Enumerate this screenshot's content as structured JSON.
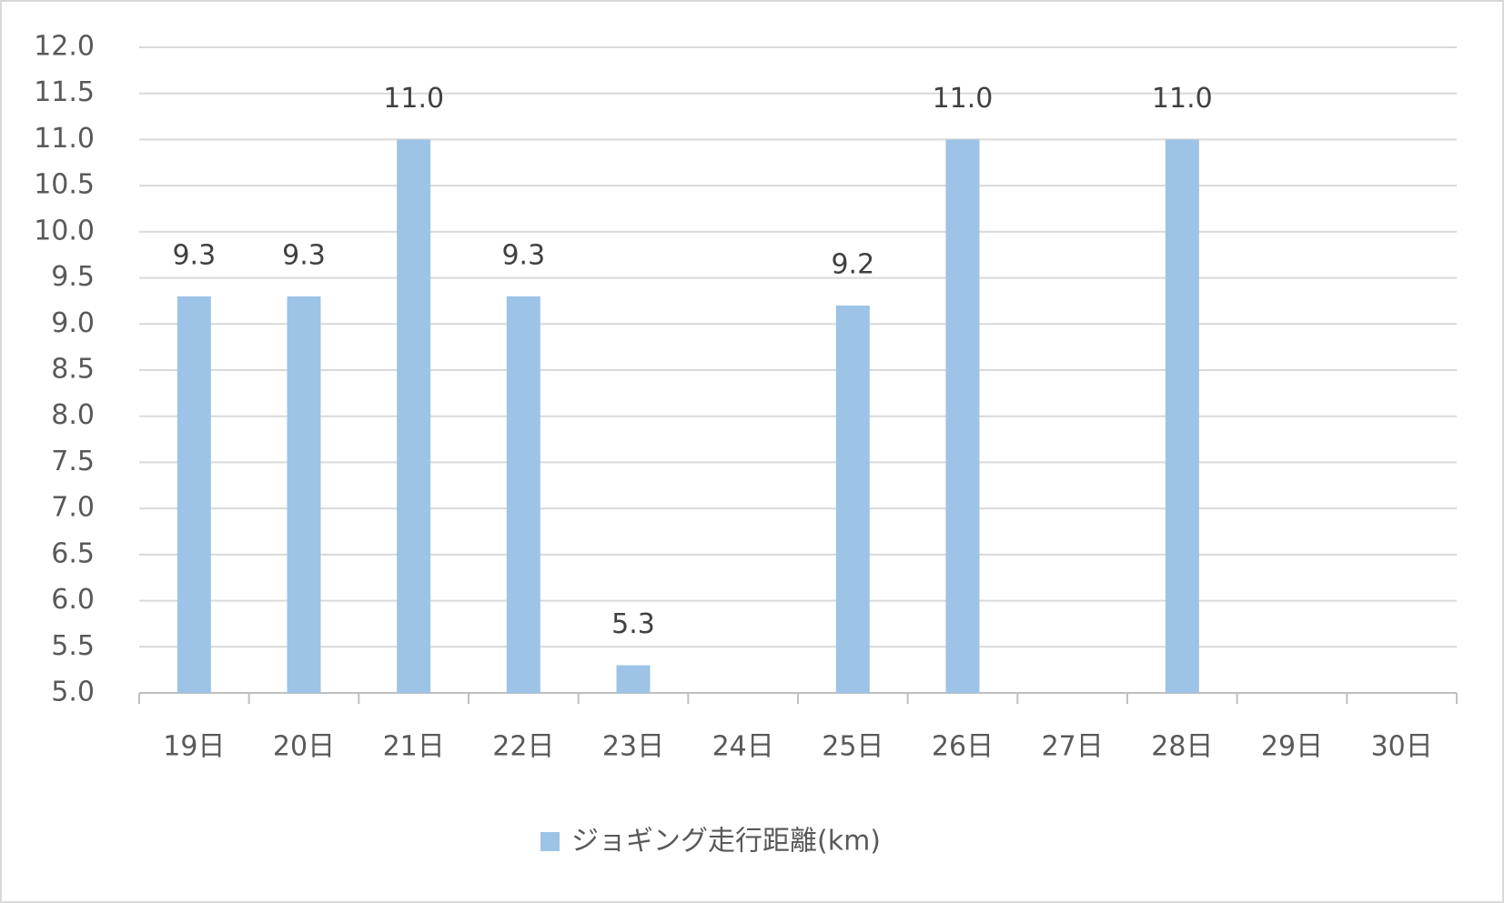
{
  "chart_data": {
    "type": "bar",
    "categories": [
      "19日",
      "20日",
      "21日",
      "22日",
      "23日",
      "24日",
      "25日",
      "26日",
      "27日",
      "28日",
      "29日",
      "30日"
    ],
    "series": [
      {
        "name": "ジョギング走行距離(km)",
        "color": "#9dc3e6",
        "values": [
          9.3,
          9.3,
          11.0,
          9.3,
          5.3,
          null,
          9.2,
          11.0,
          null,
          11.0,
          null,
          null
        ],
        "value_labels": [
          "9.3",
          "9.3",
          "11.0",
          "9.3",
          "5.3",
          null,
          "9.2",
          "11.0",
          null,
          "11.0",
          null,
          null
        ]
      }
    ],
    "ylim": [
      5,
      12
    ],
    "yticks": [
      {
        "value": 5,
        "label": "5.0"
      },
      5.5,
      {
        "value": 6,
        "label": "6.0"
      },
      6.5,
      {
        "value": 7,
        "label": "7.0"
      },
      7.5,
      {
        "value": 8,
        "label": "8.0"
      },
      8.5,
      {
        "value": 9,
        "label": "9.0"
      },
      9.5,
      {
        "value": 10,
        "label": "10.0"
      },
      10.5,
      {
        "value": 11,
        "label": "11.0"
      },
      11.5,
      {
        "value": 12,
        "label": "12.0"
      }
    ],
    "grid": true,
    "legend": "bottom"
  }
}
